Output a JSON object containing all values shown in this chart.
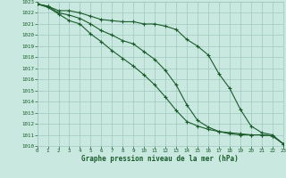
{
  "title": "Graphe pression niveau de la mer (hPa)",
  "bg_color": "#c8e8e0",
  "grid_color": "#a0c8c0",
  "line_color": "#1a5c2a",
  "xlim": [
    0,
    23
  ],
  "ylim": [
    1010,
    1023
  ],
  "x_ticks": [
    0,
    1,
    2,
    3,
    4,
    5,
    6,
    7,
    8,
    9,
    10,
    11,
    12,
    13,
    14,
    15,
    16,
    17,
    18,
    19,
    20,
    21,
    22,
    23
  ],
  "y_ticks": [
    1010,
    1011,
    1012,
    1013,
    1014,
    1015,
    1016,
    1017,
    1018,
    1019,
    1020,
    1021,
    1022,
    1023
  ],
  "line1_y": [
    1022.8,
    1022.6,
    1022.2,
    1022.2,
    1022.0,
    1021.7,
    1021.4,
    1021.3,
    1021.2,
    1021.2,
    1021.0,
    1021.0,
    1020.8,
    1020.5,
    1019.6,
    1019.0,
    1018.2,
    1016.5,
    1015.2,
    1013.3,
    1011.8,
    1011.2,
    1011.0,
    1010.2
  ],
  "line2_y": [
    1022.8,
    1022.5,
    1021.9,
    1021.3,
    1021.0,
    1020.1,
    1019.4,
    1018.6,
    1017.9,
    1017.2,
    1016.4,
    1015.5,
    1014.4,
    1013.2,
    1012.2,
    1011.8,
    1011.5,
    1011.3,
    1011.2,
    1011.1,
    1011.0,
    1011.0,
    1010.9,
    1010.2
  ],
  "line3_y": [
    1022.8,
    1022.6,
    1022.0,
    1021.8,
    1021.5,
    1021.0,
    1020.4,
    1020.0,
    1019.5,
    1019.2,
    1018.5,
    1017.8,
    1016.8,
    1015.5,
    1013.7,
    1012.3,
    1011.7,
    1011.3,
    1011.1,
    1011.0,
    1011.0,
    1011.0,
    1010.9,
    1010.2
  ]
}
